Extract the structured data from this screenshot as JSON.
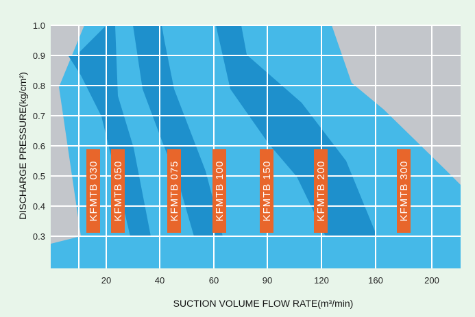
{
  "colors": {
    "background": "#e8f5ea",
    "plot_bg": "#c3c6cb",
    "band_light": "#45b9e8",
    "band_dark": "#1e90cc",
    "grid": "#ffffff",
    "label_bg": "#e8662b",
    "label_text": "#ffffff"
  },
  "chart_data": {
    "type": "area",
    "title": "",
    "xlabel": "SUCTION VOLUME FLOW RATE(m³/min)",
    "ylabel": "DISCHARGE PRESSURE(kg/cm²)",
    "x_tick_labels": [
      "20",
      "40",
      "60",
      "90",
      "120",
      "160",
      "200"
    ],
    "y_tick_labels": [
      "0.3",
      "0.4",
      "0.5",
      "0.6",
      "0.7",
      "0.8",
      "0.9",
      "1.0"
    ],
    "x_scale": "non-linear (tick labels 20, 40, 60, 90, 120, 160, 200 evenly spaced)",
    "ylim": [
      0.3,
      1.0
    ],
    "grid": true,
    "series": [
      {
        "name": "KFMTB 030",
        "shade": "light",
        "label_y": 0.45
      },
      {
        "name": "KFMTB 050",
        "shade": "dark",
        "label_y": 0.45
      },
      {
        "name": "KFMTB 075",
        "shade": "light",
        "label_y": 0.45
      },
      {
        "name": "KFMTB 100",
        "shade": "dark",
        "label_y": 0.45
      },
      {
        "name": "KFMTB 150",
        "shade": "light",
        "label_y": 0.45
      },
      {
        "name": "KFMTB 200",
        "shade": "dark",
        "label_y": 0.45
      },
      {
        "name": "KFMTB 300",
        "shade": "light",
        "label_y": 0.45
      }
    ]
  }
}
